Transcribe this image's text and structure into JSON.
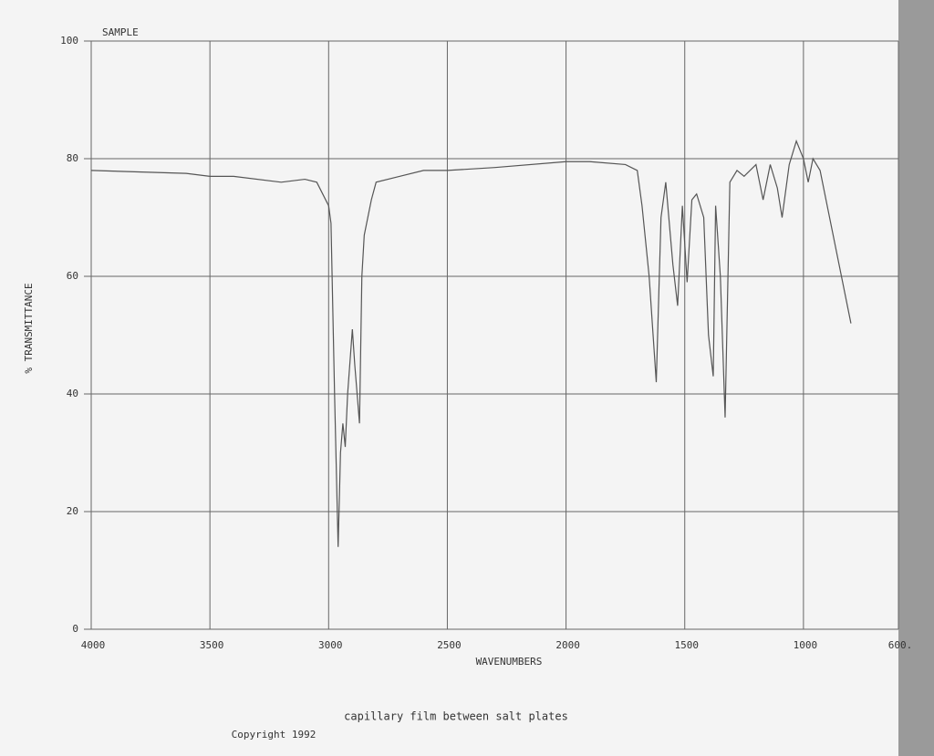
{
  "chart_data": {
    "type": "line",
    "title": "SAMPLE",
    "x_label": "WAVENUMBERS",
    "y_label": "% TRANSMITTANCE",
    "caption": "capillary film between salt plates",
    "footer": "Copyright 1992",
    "x": [
      4000,
      3600,
      3500,
      3400,
      3200,
      3100,
      3050,
      3000,
      2990,
      2975,
      2960,
      2950,
      2940,
      2930,
      2920,
      2900,
      2890,
      2870,
      2860,
      2850,
      2820,
      2800,
      2700,
      2600,
      2500,
      2300,
      2000,
      1900,
      1750,
      1700,
      1680,
      1650,
      1620,
      1600,
      1580,
      1550,
      1530,
      1510,
      1490,
      1470,
      1450,
      1420,
      1400,
      1380,
      1370,
      1350,
      1330,
      1310,
      1280,
      1250,
      1200,
      1170,
      1140,
      1110,
      1090,
      1060,
      1030,
      1000,
      980,
      960,
      930,
      900,
      850,
      800
    ],
    "series": [
      {
        "name": "SAMPLE",
        "color": "#555555",
        "values": [
          78,
          77.5,
          77,
          77,
          76,
          76.5,
          76,
          72,
          69,
          40,
          14,
          30,
          35,
          31,
          40,
          51,
          45,
          35,
          60,
          67,
          73,
          76,
          77,
          78,
          78,
          78.5,
          79.5,
          79.5,
          79,
          78,
          72,
          60,
          42,
          70,
          76,
          62,
          55,
          72,
          59,
          73,
          74,
          70,
          50,
          43,
          72,
          60,
          36,
          76,
          78,
          77,
          79,
          73,
          79,
          75,
          70,
          79,
          83,
          80,
          76,
          80,
          78,
          72,
          62,
          52
        ]
      }
    ],
    "xlim": [
      4000,
      600
    ],
    "ylim": [
      0,
      100
    ],
    "xticks": [
      4000,
      3500,
      3000,
      2500,
      2000,
      1500,
      1000,
      {
        "value": 600,
        "label": "600."
      }
    ],
    "yticks": [
      0,
      20,
      40,
      60,
      80,
      100
    ],
    "grid": true
  }
}
